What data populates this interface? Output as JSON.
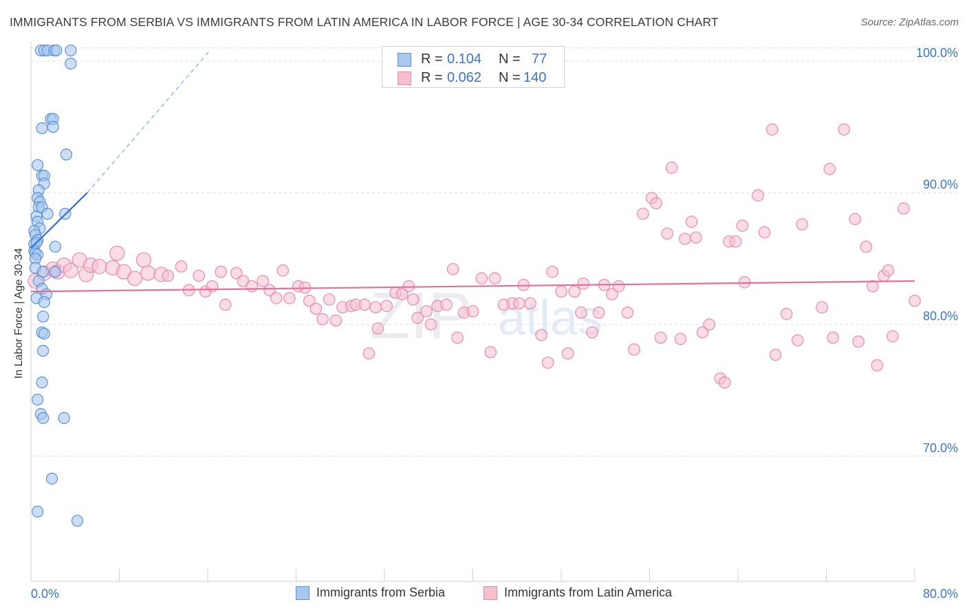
{
  "title": "IMMIGRANTS FROM SERBIA VS IMMIGRANTS FROM LATIN AMERICA IN LABOR FORCE | AGE 30-34 CORRELATION CHART",
  "source": "Source: ZipAtlas.com",
  "watermark": {
    "zip": "ZIP",
    "atlas": "atlas"
  },
  "colors": {
    "serbia_fill": "#a9c8f0",
    "serbia_stroke": "#5b8fd6",
    "serbia_line": "#2f6fd1",
    "latin_fill": "#f6bfd0",
    "latin_stroke": "#e889aa",
    "latin_line": "#e2709b",
    "tick_label": "#3a74c6"
  },
  "legend_top": {
    "serbia": {
      "r_label": "R =",
      "r_value": "0.104",
      "n_label": "N =",
      "n_value": "77"
    },
    "latin": {
      "r_label": "R =",
      "r_value": "0.062",
      "n_label": "N =",
      "n_value": "140"
    }
  },
  "chart_data": {
    "type": "scatter",
    "title": "IMMIGRANTS FROM SERBIA VS IMMIGRANTS FROM LATIN AMERICA IN LABOR FORCE | AGE 30-34 CORRELATION CHART",
    "xlabel": "",
    "ylabel": "In Labor Force | Age 30-34",
    "xlim": [
      0,
      80
    ],
    "ylim": [
      60.5,
      101.5
    ],
    "x_tick_labels": [
      "0.0%",
      "80.0%"
    ],
    "y_ticks": [
      70,
      80,
      90,
      100
    ],
    "y_tick_labels": [
      "70.0%",
      "80.0%",
      "90.0%",
      "100.0%"
    ],
    "grid": true,
    "legend": "bottom-center",
    "series": [
      {
        "name": "Immigrants from Serbia",
        "trend": {
          "x": [
            0,
            5.1
          ],
          "y": [
            85.8,
            90.0
          ],
          "extended_to": [
            16.2,
            100.8
          ]
        },
        "points": [
          [
            0.9,
            100.8
          ],
          [
            1.2,
            100.8
          ],
          [
            1.5,
            100.8
          ],
          [
            2.1,
            100.8
          ],
          [
            2.3,
            100.8
          ],
          [
            3.6,
            100.8
          ],
          [
            3.6,
            99.8
          ],
          [
            1.8,
            95.6
          ],
          [
            2.0,
            95.6
          ],
          [
            2.0,
            95.0
          ],
          [
            1.0,
            94.9
          ],
          [
            3.2,
            92.9
          ],
          [
            0.6,
            92.1
          ],
          [
            1.0,
            91.3
          ],
          [
            1.2,
            91.3
          ],
          [
            1.2,
            90.7
          ],
          [
            0.7,
            90.2
          ],
          [
            0.6,
            89.6
          ],
          [
            0.8,
            89.3
          ],
          [
            0.7,
            88.9
          ],
          [
            1.0,
            88.9
          ],
          [
            1.5,
            88.4
          ],
          [
            0.5,
            88.2
          ],
          [
            3.1,
            88.4
          ],
          [
            0.6,
            87.8
          ],
          [
            0.8,
            87.3
          ],
          [
            0.3,
            87.1
          ],
          [
            0.4,
            86.8
          ],
          [
            0.6,
            86.4
          ],
          [
            0.3,
            86.1
          ],
          [
            0.5,
            86.2
          ],
          [
            2.2,
            85.9
          ],
          [
            0.3,
            85.6
          ],
          [
            0.4,
            85.4
          ],
          [
            0.6,
            85.3
          ],
          [
            0.4,
            85.0
          ],
          [
            0.4,
            84.3
          ],
          [
            1.1,
            84.0
          ],
          [
            2.2,
            84.0
          ],
          [
            0.7,
            83.3
          ],
          [
            1.0,
            82.7
          ],
          [
            1.4,
            82.3
          ],
          [
            0.5,
            82.0
          ],
          [
            1.2,
            81.7
          ],
          [
            1.1,
            80.6
          ],
          [
            1.0,
            79.4
          ],
          [
            1.2,
            79.3
          ],
          [
            1.1,
            78.0
          ],
          [
            1.0,
            75.6
          ],
          [
            0.6,
            74.3
          ],
          [
            0.9,
            73.2
          ],
          [
            1.1,
            72.9
          ],
          [
            3.0,
            72.9
          ],
          [
            1.9,
            68.3
          ],
          [
            0.6,
            65.8
          ],
          [
            4.2,
            65.1
          ]
        ]
      },
      {
        "name": "Immigrants from Latin America",
        "trend": {
          "x": [
            0,
            80
          ],
          "y": [
            82.5,
            83.3
          ]
        },
        "points": [
          [
            0.4,
            83.3
          ],
          [
            1.2,
            83.9
          ],
          [
            2.0,
            84.2
          ],
          [
            2.4,
            84.0
          ],
          [
            3.0,
            84.5
          ],
          [
            3.6,
            84.1
          ],
          [
            4.4,
            84.9
          ],
          [
            5.0,
            83.8
          ],
          [
            5.4,
            84.5
          ],
          [
            6.2,
            84.4
          ],
          [
            7.4,
            84.3
          ],
          [
            7.8,
            85.4
          ],
          [
            8.4,
            84.0
          ],
          [
            9.4,
            83.5
          ],
          [
            10.2,
            84.9
          ],
          [
            10.6,
            83.9
          ],
          [
            11.8,
            83.8
          ],
          [
            12.4,
            83.7
          ],
          [
            13.6,
            84.4
          ],
          [
            14.3,
            82.6
          ],
          [
            15.2,
            83.7
          ],
          [
            15.8,
            82.5
          ],
          [
            16.4,
            82.9
          ],
          [
            17.2,
            84.0
          ],
          [
            17.6,
            81.5
          ],
          [
            18.6,
            83.9
          ],
          [
            19.2,
            83.3
          ],
          [
            20.0,
            82.9
          ],
          [
            21.0,
            83.3
          ],
          [
            21.6,
            82.6
          ],
          [
            22.2,
            82.0
          ],
          [
            22.8,
            84.1
          ],
          [
            23.4,
            82.0
          ],
          [
            24.2,
            82.9
          ],
          [
            24.8,
            82.8
          ],
          [
            25.2,
            81.8
          ],
          [
            25.8,
            81.2
          ],
          [
            26.4,
            80.4
          ],
          [
            27.0,
            81.9
          ],
          [
            27.6,
            80.3
          ],
          [
            28.2,
            81.3
          ],
          [
            29.0,
            81.4
          ],
          [
            29.4,
            81.5
          ],
          [
            30.2,
            81.5
          ],
          [
            30.6,
            77.8
          ],
          [
            31.2,
            81.3
          ],
          [
            31.4,
            79.7
          ],
          [
            32.2,
            81.4
          ],
          [
            33.0,
            82.4
          ],
          [
            33.6,
            82.3
          ],
          [
            34.2,
            82.9
          ],
          [
            34.6,
            81.9
          ],
          [
            35.0,
            80.5
          ],
          [
            35.8,
            81.0
          ],
          [
            36.2,
            80.0
          ],
          [
            36.8,
            81.4
          ],
          [
            37.6,
            81.5
          ],
          [
            38.2,
            84.2
          ],
          [
            38.6,
            79.0
          ],
          [
            39.2,
            80.9
          ],
          [
            40.0,
            81.0
          ],
          [
            40.8,
            83.5
          ],
          [
            41.6,
            77.9
          ],
          [
            42.0,
            83.5
          ],
          [
            42.8,
            81.5
          ],
          [
            43.6,
            81.6
          ],
          [
            44.2,
            81.6
          ],
          [
            44.6,
            83.0
          ],
          [
            45.2,
            81.6
          ],
          [
            46.2,
            79.2
          ],
          [
            46.8,
            77.1
          ],
          [
            47.2,
            84.0
          ],
          [
            48.0,
            82.5
          ],
          [
            48.6,
            77.8
          ],
          [
            49.2,
            82.5
          ],
          [
            49.8,
            80.9
          ],
          [
            50.0,
            83.1
          ],
          [
            50.8,
            79.4
          ],
          [
            51.4,
            80.9
          ],
          [
            51.9,
            83.0
          ],
          [
            52.6,
            82.3
          ],
          [
            53.2,
            82.9
          ],
          [
            54.0,
            80.9
          ],
          [
            54.6,
            78.1
          ],
          [
            55.4,
            88.4
          ],
          [
            56.2,
            89.6
          ],
          [
            56.6,
            89.2
          ],
          [
            57.0,
            79.0
          ],
          [
            57.6,
            86.9
          ],
          [
            58.0,
            91.9
          ],
          [
            58.8,
            78.9
          ],
          [
            59.2,
            86.5
          ],
          [
            59.8,
            87.8
          ],
          [
            60.2,
            86.6
          ],
          [
            60.8,
            79.4
          ],
          [
            61.4,
            80.0
          ],
          [
            62.4,
            75.9
          ],
          [
            62.8,
            75.6
          ],
          [
            63.2,
            86.3
          ],
          [
            63.8,
            86.3
          ],
          [
            64.4,
            87.5
          ],
          [
            64.6,
            83.2
          ],
          [
            65.8,
            89.8
          ],
          [
            66.4,
            87.0
          ],
          [
            67.1,
            94.8
          ],
          [
            67.4,
            77.7
          ],
          [
            68.4,
            80.8
          ],
          [
            69.4,
            78.8
          ],
          [
            69.8,
            87.6
          ],
          [
            71.6,
            81.3
          ],
          [
            72.3,
            91.8
          ],
          [
            72.6,
            79.0
          ],
          [
            73.6,
            94.8
          ],
          [
            74.6,
            88.0
          ],
          [
            74.9,
            78.7
          ],
          [
            75.6,
            85.9
          ],
          [
            76.2,
            82.9
          ],
          [
            76.6,
            76.9
          ],
          [
            77.2,
            83.7
          ],
          [
            77.6,
            84.1
          ],
          [
            78.0,
            79.1
          ],
          [
            79.0,
            88.8
          ],
          [
            80.0,
            81.8
          ]
        ]
      }
    ]
  },
  "legend_bottom": [
    {
      "label": "Immigrants from Serbia"
    },
    {
      "label": "Immigrants from Latin America"
    }
  ]
}
